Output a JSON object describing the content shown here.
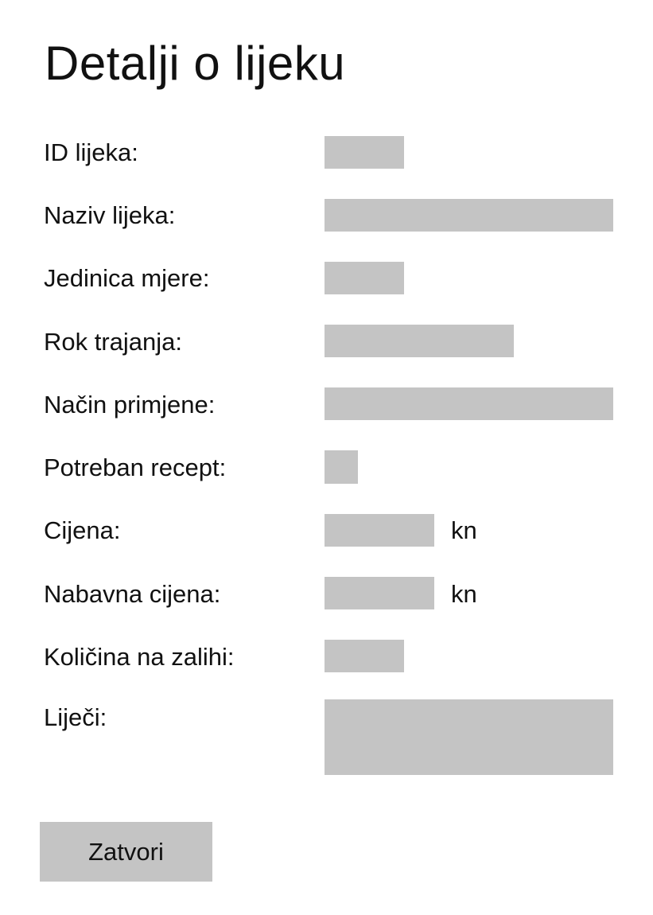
{
  "page": {
    "title": "Detalji o lijeku"
  },
  "fields": {
    "id": {
      "label": "ID lijeka:"
    },
    "naziv": {
      "label": "Naziv lijeka:"
    },
    "jedinica": {
      "label": "Jedinica mjere:"
    },
    "rok": {
      "label": "Rok trajanja:"
    },
    "nacin": {
      "label": "Način primjene:"
    },
    "recept": {
      "label": "Potreban recept:"
    },
    "cijena": {
      "label": "Cijena:",
      "unit": "kn"
    },
    "nabavna": {
      "label": "Nabavna cijena:",
      "unit": "kn"
    },
    "kolicina": {
      "label": "Količina na zalihi:"
    },
    "lijeci": {
      "label": "Liječi:"
    }
  },
  "actions": {
    "close_label": "Zatvori"
  },
  "colors": {
    "field_fill": "#c4c4c4",
    "text": "#111111",
    "background": "#ffffff"
  }
}
